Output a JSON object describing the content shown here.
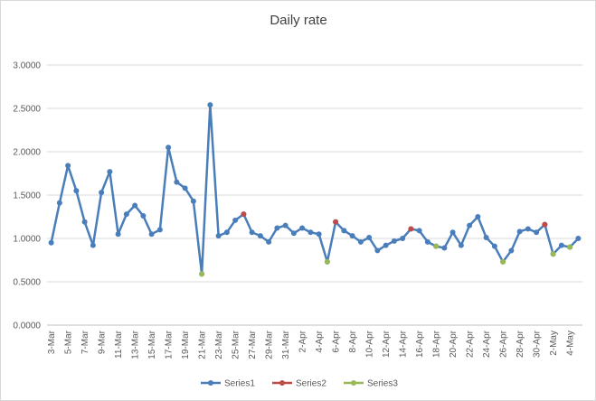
{
  "chart_data": {
    "type": "line",
    "title": "Daily rate",
    "categories": [
      "3-Mar",
      null,
      "5-Mar",
      null,
      "7-Mar",
      null,
      "9-Mar",
      null,
      "11-Mar",
      null,
      "13-Mar",
      null,
      "15-Mar",
      null,
      "17-Mar",
      null,
      "19-Mar",
      null,
      "21-Mar",
      null,
      "23-Mar",
      null,
      "25-Mar",
      null,
      "27-Mar",
      null,
      "29-Mar",
      null,
      "31-Mar",
      null,
      "2-Apr",
      null,
      "4-Apr",
      null,
      "6-Apr",
      null,
      "8-Apr",
      null,
      "10-Apr",
      null,
      "12-Apr",
      null,
      "14-Apr",
      null,
      "16-Apr",
      null,
      "18-Apr",
      null,
      "20-Apr",
      null,
      "22-Apr",
      null,
      "24-Apr",
      null,
      "26-Apr",
      null,
      "28-Apr",
      null,
      "30-Apr",
      null,
      "2-May",
      null,
      "4-May",
      null
    ],
    "series": [
      {
        "name": "Series1",
        "color": "#4a7ebb",
        "values": [
          0.95,
          1.41,
          1.84,
          1.55,
          1.19,
          0.92,
          1.53,
          1.77,
          1.05,
          1.28,
          1.38,
          1.26,
          1.05,
          1.1,
          2.05,
          1.65,
          1.58,
          1.43,
          0.59,
          2.54,
          1.03,
          1.07,
          1.21,
          1.28,
          1.07,
          1.03,
          0.96,
          1.12,
          1.15,
          1.06,
          1.12,
          1.07,
          1.05,
          0.73,
          1.19,
          1.09,
          1.03,
          0.96,
          1.01,
          0.86,
          0.92,
          0.97,
          1.0,
          1.11,
          1.09,
          0.96,
          0.91,
          0.89,
          1.07,
          0.92,
          1.15,
          1.25,
          1.01,
          0.91,
          0.73,
          0.86,
          1.08,
          1.11,
          1.07,
          1.16,
          0.82,
          0.92,
          0.9,
          1.0
        ]
      },
      {
        "name": "Series2",
        "color": "#be4b48",
        "values": [
          null,
          null,
          null,
          null,
          null,
          null,
          null,
          null,
          null,
          null,
          null,
          null,
          null,
          null,
          null,
          null,
          null,
          null,
          null,
          null,
          null,
          null,
          null,
          1.28,
          null,
          null,
          null,
          null,
          null,
          null,
          null,
          null,
          null,
          null,
          1.19,
          null,
          null,
          null,
          null,
          null,
          null,
          null,
          null,
          1.11,
          null,
          null,
          null,
          null,
          null,
          null,
          null,
          null,
          null,
          null,
          null,
          null,
          null,
          null,
          null,
          1.16,
          null,
          null,
          null,
          null
        ]
      },
      {
        "name": "Series3",
        "color": "#98b954",
        "values": [
          null,
          null,
          null,
          null,
          null,
          null,
          null,
          null,
          null,
          null,
          null,
          null,
          null,
          null,
          null,
          null,
          null,
          null,
          0.59,
          null,
          null,
          null,
          null,
          null,
          null,
          null,
          null,
          null,
          null,
          null,
          null,
          null,
          null,
          0.73,
          null,
          null,
          null,
          null,
          null,
          null,
          null,
          null,
          null,
          null,
          null,
          null,
          0.91,
          null,
          null,
          null,
          null,
          null,
          null,
          null,
          0.73,
          null,
          null,
          null,
          null,
          null,
          0.82,
          null,
          0.9,
          null
        ]
      }
    ],
    "ylim": [
      0,
      3
    ],
    "yticks": [
      {
        "value": 0,
        "label": "0.0000"
      },
      {
        "value": 0.5,
        "label": "0.5000"
      },
      {
        "value": 1,
        "label": "1.0000"
      },
      {
        "value": 1.5,
        "label": "1.5000"
      },
      {
        "value": 2,
        "label": "2.0000"
      },
      {
        "value": 2.5,
        "label": "2.5000"
      },
      {
        "value": 3,
        "label": "3.0000"
      }
    ],
    "grid": true,
    "legend": "bottom"
  }
}
